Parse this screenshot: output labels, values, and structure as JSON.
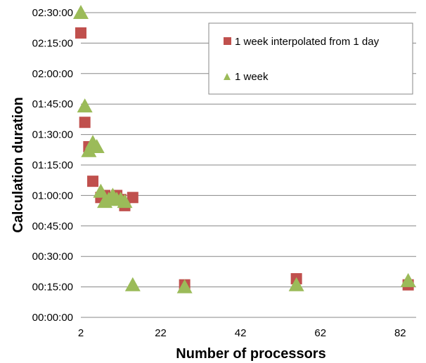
{
  "chart_data": {
    "type": "scatter",
    "xlabel": "Number of processors",
    "ylabel": "Calculation duration",
    "xlim": [
      2,
      86
    ],
    "ylim": [
      0,
      150
    ],
    "xticks": [
      2,
      22,
      42,
      62,
      82
    ],
    "yticks": [
      0,
      15,
      30,
      45,
      60,
      75,
      90,
      105,
      120,
      135,
      150
    ],
    "ytick_labels": [
      "00:00:00",
      "00:15:00",
      "00:30:00",
      "00:45:00",
      "01:00:00",
      "01:15:00",
      "01:30:00",
      "01:45:00",
      "02:00:00",
      "02:15:00",
      "02:30:00"
    ],
    "grid": "horizontal",
    "legend_position": "top-right",
    "series": [
      {
        "name": "1 week interpolated from 1 day",
        "marker": "square",
        "color": "#C0504D",
        "points": [
          {
            "x": 2,
            "y": 140
          },
          {
            "x": 3,
            "y": 96
          },
          {
            "x": 4,
            "y": 84
          },
          {
            "x": 5,
            "y": 67
          },
          {
            "x": 7,
            "y": 59
          },
          {
            "x": 8,
            "y": 60
          },
          {
            "x": 9,
            "y": 58
          },
          {
            "x": 10,
            "y": 58
          },
          {
            "x": 11,
            "y": 60
          },
          {
            "x": 12,
            "y": 58
          },
          {
            "x": 13,
            "y": 55
          },
          {
            "x": 15,
            "y": 59
          },
          {
            "x": 28,
            "y": 16
          },
          {
            "x": 56,
            "y": 19
          },
          {
            "x": 84,
            "y": 16
          }
        ]
      },
      {
        "name": "1 week",
        "marker": "triangle",
        "color": "#9BBB59",
        "points": [
          {
            "x": 2,
            "y": 150
          },
          {
            "x": 3,
            "y": 104
          },
          {
            "x": 4,
            "y": 82
          },
          {
            "x": 5,
            "y": 86
          },
          {
            "x": 6,
            "y": 84
          },
          {
            "x": 7,
            "y": 62
          },
          {
            "x": 8,
            "y": 57
          },
          {
            "x": 9,
            "y": 58
          },
          {
            "x": 10,
            "y": 60
          },
          {
            "x": 11,
            "y": 58
          },
          {
            "x": 12,
            "y": 58
          },
          {
            "x": 13,
            "y": 57
          },
          {
            "x": 15,
            "y": 16
          },
          {
            "x": 28,
            "y": 15
          },
          {
            "x": 56,
            "y": 16
          },
          {
            "x": 84,
            "y": 18
          }
        ]
      }
    ]
  }
}
